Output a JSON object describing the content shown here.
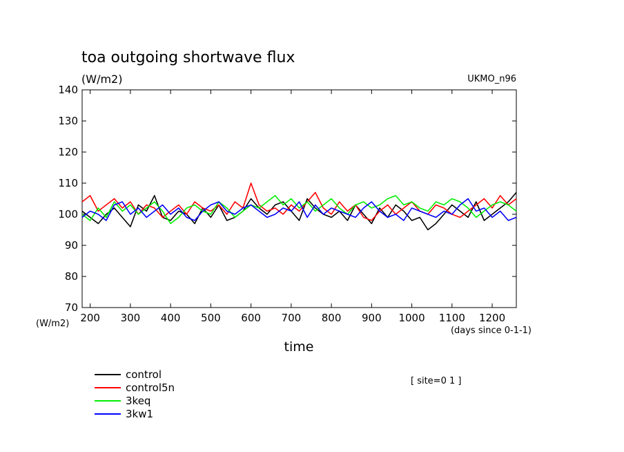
{
  "chart_data": {
    "type": "line",
    "title": "toa outgoing shortwave flux",
    "units_label": "(W/m2)",
    "model_label": "UKMO_n96",
    "xlabel": "time",
    "x_units_label": "(days since 0-1-1)",
    "y_units_label": "(W/m2)",
    "site_label": "[ site=0 1 ]",
    "xlim": [
      180,
      1260
    ],
    "ylim": [
      70,
      140
    ],
    "x_ticks": [
      200,
      300,
      400,
      500,
      600,
      700,
      800,
      900,
      1000,
      1100,
      1200
    ],
    "x_tick_labels": [
      "200",
      "300",
      "400",
      "500",
      "600",
      "700",
      "800",
      "900",
      "1000",
      "1100",
      "1200"
    ],
    "y_ticks": [
      70,
      80,
      90,
      100,
      110,
      120,
      130,
      140
    ],
    "y_tick_labels": [
      "70",
      "80",
      "90",
      "100",
      "110",
      "120",
      "130",
      "140"
    ],
    "grid": false,
    "legend_position": "bottom-left",
    "series": [
      {
        "name": "control",
        "color": "#000000",
        "x": [
          180,
          200,
          220,
          240,
          260,
          280,
          300,
          320,
          340,
          360,
          380,
          400,
          420,
          440,
          460,
          480,
          500,
          520,
          540,
          560,
          580,
          600,
          620,
          640,
          660,
          680,
          700,
          720,
          740,
          760,
          780,
          800,
          820,
          840,
          860,
          880,
          900,
          920,
          940,
          960,
          980,
          1000,
          1020,
          1040,
          1060,
          1080,
          1100,
          1120,
          1140,
          1160,
          1180,
          1200,
          1220,
          1240,
          1260
        ],
        "values": [
          101,
          99,
          97,
          100,
          102,
          99,
          96,
          103,
          101,
          106,
          99,
          98,
          101,
          100,
          97,
          102,
          99,
          103,
          98,
          99,
          101,
          105,
          102,
          100,
          103,
          104,
          101,
          98,
          105,
          102,
          100,
          99,
          101,
          98,
          103,
          100,
          97,
          102,
          99,
          103,
          101,
          98,
          99,
          95,
          97,
          100,
          103,
          101,
          99,
          104,
          98,
          100,
          102,
          104,
          107
        ]
      },
      {
        "name": "control5n",
        "color": "#ff0000",
        "x": [
          180,
          200,
          220,
          240,
          260,
          280,
          300,
          320,
          340,
          360,
          380,
          400,
          420,
          440,
          460,
          480,
          500,
          520,
          540,
          560,
          580,
          600,
          620,
          640,
          660,
          680,
          700,
          720,
          740,
          760,
          780,
          800,
          820,
          840,
          860,
          880,
          900,
          920,
          940,
          960,
          980,
          1000,
          1020,
          1040,
          1060,
          1080,
          1100,
          1120,
          1140,
          1160,
          1180,
          1200,
          1220,
          1240,
          1260
        ],
        "values": [
          104,
          106,
          101,
          103,
          105,
          102,
          104,
          100,
          103,
          102,
          99,
          101,
          103,
          100,
          104,
          102,
          101,
          103,
          100,
          104,
          102,
          110,
          103,
          101,
          102,
          100,
          103,
          101,
          104,
          107,
          102,
          100,
          104,
          101,
          103,
          99,
          98,
          101,
          103,
          100,
          102,
          104,
          101,
          100,
          103,
          102,
          100,
          99,
          101,
          103,
          105,
          102,
          106,
          103,
          105
        ]
      },
      {
        "name": "3keq",
        "color": "#00ee00",
        "x": [
          180,
          200,
          220,
          240,
          260,
          280,
          300,
          320,
          340,
          360,
          380,
          400,
          420,
          440,
          460,
          480,
          500,
          520,
          540,
          560,
          580,
          600,
          620,
          640,
          660,
          680,
          700,
          720,
          740,
          760,
          780,
          800,
          820,
          840,
          860,
          880,
          900,
          920,
          940,
          960,
          980,
          1000,
          1020,
          1040,
          1060,
          1080,
          1100,
          1120,
          1140,
          1160,
          1180,
          1200,
          1220,
          1240,
          1260
        ],
        "values": [
          100,
          98,
          102,
          99,
          104,
          101,
          103,
          100,
          102,
          104,
          101,
          97,
          99,
          102,
          103,
          101,
          100,
          104,
          102,
          99,
          101,
          103,
          102,
          104,
          106,
          103,
          105,
          102,
          104,
          101,
          103,
          105,
          102,
          100,
          103,
          104,
          102,
          103,
          105,
          106,
          103,
          104,
          102,
          101,
          104,
          103,
          105,
          104,
          102,
          99,
          101,
          103,
          104,
          103,
          101
        ]
      },
      {
        "name": "3kw1",
        "color": "#0000ff",
        "x": [
          180,
          200,
          220,
          240,
          260,
          280,
          300,
          320,
          340,
          360,
          380,
          400,
          420,
          440,
          460,
          480,
          500,
          520,
          540,
          560,
          580,
          600,
          620,
          640,
          660,
          680,
          700,
          720,
          740,
          760,
          780,
          800,
          820,
          840,
          860,
          880,
          900,
          920,
          940,
          960,
          980,
          1000,
          1020,
          1040,
          1060,
          1080,
          1100,
          1120,
          1140,
          1160,
          1180,
          1200,
          1220,
          1240,
          1260
        ],
        "values": [
          99,
          101,
          100,
          98,
          103,
          104,
          100,
          102,
          99,
          101,
          103,
          100,
          102,
          99,
          98,
          101,
          103,
          104,
          101,
          100,
          102,
          103,
          101,
          99,
          100,
          102,
          101,
          104,
          99,
          103,
          100,
          102,
          101,
          100,
          99,
          102,
          104,
          101,
          99,
          100,
          98,
          102,
          101,
          100,
          99,
          101,
          100,
          103,
          105,
          101,
          102,
          99,
          101,
          98,
          99
        ]
      }
    ]
  }
}
